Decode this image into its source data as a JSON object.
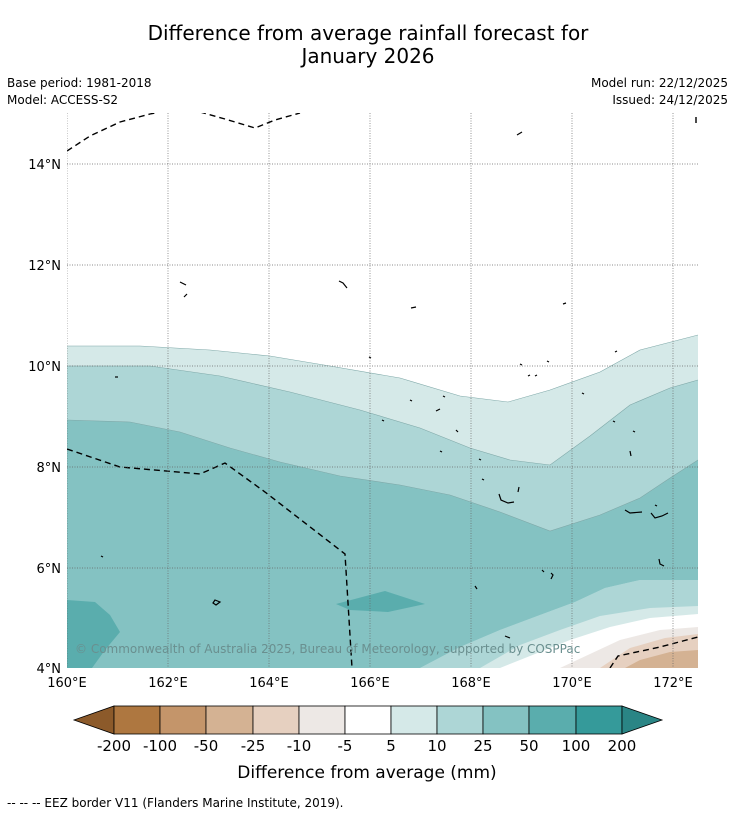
{
  "title": {
    "line1": "Difference from average rainfall forecast for",
    "line2": "January 2026"
  },
  "meta": {
    "base_period": "Base period: 1981-2018",
    "model": "Model: ACCESS-S2",
    "model_run": "Model run: 22/12/2025",
    "issued": "Issued: 24/12/2025"
  },
  "map": {
    "lat_labels": [
      "14°N",
      "12°N",
      "10°N",
      "8°N",
      "6°N",
      "4°N"
    ],
    "lon_labels": [
      "160°E",
      "162°E",
      "164°E",
      "166°E",
      "168°E",
      "170°E",
      "172°E"
    ],
    "copyright": "© Commonwealth of Australia 2025, Bureau of Meteorology, supported by COSPPac"
  },
  "colorbar": {
    "labels": [
      "-200",
      "-100",
      "-50",
      "-25",
      "-10",
      "-5",
      "5",
      "10",
      "25",
      "50",
      "100",
      "200"
    ],
    "colors": [
      "#8c5a2a",
      "#ae7740",
      "#c4956a",
      "#d4b293",
      "#e6d0c0",
      "#ede8e5",
      "#ffffff",
      "#d5e9e8",
      "#add6d6",
      "#84c2c2",
      "#5aadad",
      "#359a9a",
      "#2a8585"
    ],
    "axis_label": "Difference from average (mm)"
  },
  "footnote": "--  --  -- EEZ border V11 (Flanders Marine Institute, 2019)."
}
